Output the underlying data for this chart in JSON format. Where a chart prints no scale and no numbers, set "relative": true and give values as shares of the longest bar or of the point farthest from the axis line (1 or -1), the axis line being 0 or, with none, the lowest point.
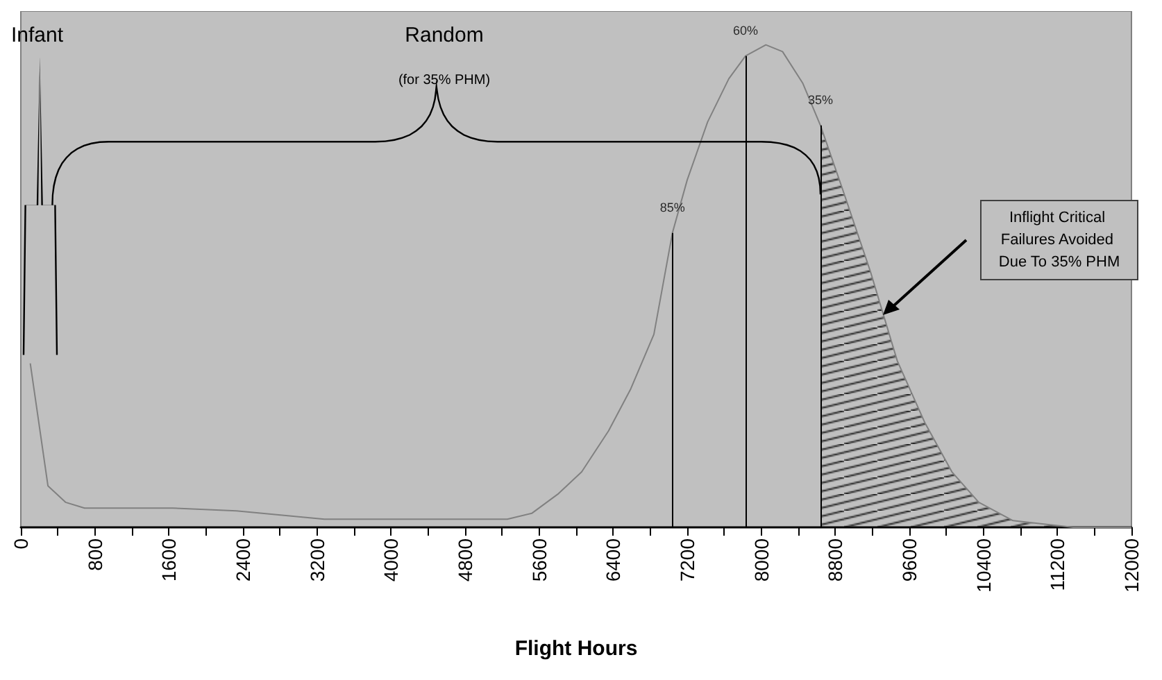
{
  "chart_data": {
    "type": "line",
    "relative": true,
    "xlabel": "Flight Hours",
    "x": [
      102,
      293,
      483,
      688,
      1640,
      2330,
      3280,
      5256,
      5520,
      5810,
      6060,
      6350,
      6590,
      6840,
      7040,
      7200,
      7420,
      7650,
      7830,
      8050,
      8230,
      8450,
      8640,
      8880,
      9180,
      9470,
      9770,
      10060,
      10350,
      10720,
      11370,
      12000
    ],
    "series": [
      {
        "color": "#808080",
        "values": [
          0.34,
          0.086,
          0.052,
          0.04,
          0.04,
          0.034,
          0.017,
          0.017,
          0.029,
          0.07,
          0.115,
          0.2,
          0.287,
          0.4,
          0.61,
          0.72,
          0.84,
          0.93,
          0.977,
          1.0,
          0.986,
          0.92,
          0.833,
          0.7,
          0.53,
          0.345,
          0.216,
          0.115,
          0.052,
          0.014,
          0,
          0
        ]
      },
      {
        "type": "area",
        "color": "#000000",
        "x": [
          8640,
          8880,
          9180,
          9470,
          9770,
          10060,
          10350,
          10720,
          11370,
          12000
        ],
        "values": [
          0.833,
          0.7,
          0.53,
          0.345,
          0.216,
          0.115,
          0.052,
          0.014,
          0,
          0
        ]
      }
    ],
    "xlim": [
      0,
      12000
    ],
    "xticks": [
      0,
      {
        "value": 400,
        "label": null
      },
      800,
      {
        "value": 1200,
        "label": null
      },
      1600,
      {
        "value": 2000,
        "label": null
      },
      2400,
      {
        "value": 2800,
        "label": null
      },
      3200,
      {
        "value": 3600,
        "label": null
      },
      4000,
      {
        "value": 4400,
        "label": null
      },
      4800,
      {
        "value": 5200,
        "label": null
      },
      5600,
      {
        "value": 6000,
        "label": null
      },
      6400,
      {
        "value": 6800,
        "label": null
      },
      7200,
      {
        "value": 7600,
        "label": null
      },
      8000,
      {
        "value": 8400,
        "label": null
      },
      8800,
      {
        "value": 9200,
        "label": null
      },
      9600,
      {
        "value": 10000,
        "label": null
      },
      10400,
      {
        "value": 10800,
        "label": null
      },
      11200,
      {
        "value": 11600,
        "label": null
      },
      12000
    ],
    "ref_lines": [
      {
        "axis": "x",
        "value": 7040,
        "color": "#000000"
      },
      {
        "axis": "x",
        "value": 7830,
        "color": "#000000"
      },
      {
        "axis": "x",
        "value": 8640,
        "color": "#000000"
      }
    ],
    "annotations": [
      "Infant",
      "Random",
      "(for 35% PHM)",
      "Inflight Critical Failures Avoided Due To 35% PHM",
      {
        "text": "85%",
        "x": 7040,
        "y": 0.61
      },
      {
        "text": "60%",
        "x": 7830,
        "y": 0.977
      },
      {
        "text": "35%",
        "x": 8640,
        "y": 0.833
      }
    ],
    "grid": false,
    "marker": "none",
    "line_style": "solid"
  }
}
